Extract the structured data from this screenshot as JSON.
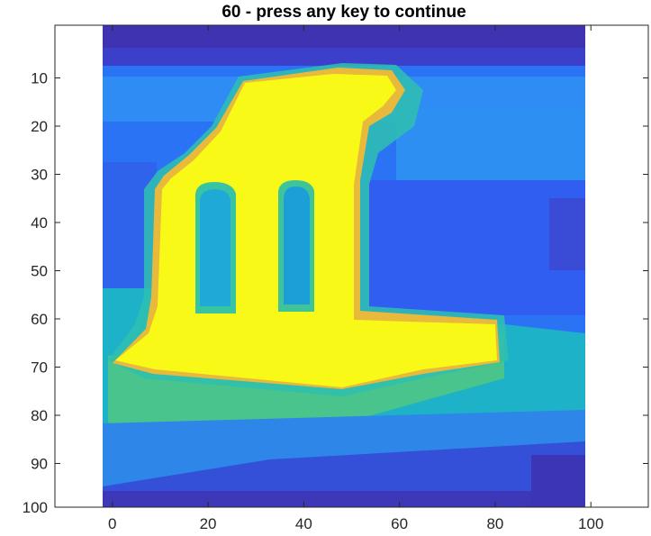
{
  "window": {
    "title": "60 - press any key to continue"
  },
  "chart_data": {
    "type": "heatmap",
    "title": "60 - press any key to continue",
    "xlabel": "",
    "ylabel": "",
    "xlim": [
      -12,
      112
    ],
    "ylim": [
      0,
      100
    ],
    "y_reversed": true,
    "grid": false,
    "xticks": [
      0,
      20,
      40,
      60,
      80,
      100
    ],
    "yticks": [
      10,
      20,
      30,
      40,
      50,
      60,
      70,
      80,
      90,
      100
    ],
    "xtick_labels": [
      "0",
      "20",
      "40",
      "60",
      "80",
      "100"
    ],
    "ytick_labels": [
      "10",
      "20",
      "30",
      "40",
      "50",
      "60",
      "70",
      "80",
      "90",
      "100"
    ],
    "colormap": [
      "#3e26a8",
      "#2f5ef2",
      "#2d8ff5",
      "#16b2d8",
      "#33c39e",
      "#9abb4c",
      "#f1b83a",
      "#f9f917"
    ],
    "image_extent": {
      "x": [
        0.5,
        100.5
      ],
      "y": [
        0.5,
        100.5
      ]
    },
    "image_description_note": "",
    "regions": [
      {
        "name": "",
        "value": 0.0,
        "shape": "rect",
        "x": [
          1,
          100
        ],
        "y": [
          0,
          8
        ]
      },
      {
        "name": "",
        "value": 0.15,
        "shape": "rect",
        "x": [
          1,
          100
        ],
        "y": [
          8,
          12
        ]
      },
      {
        "name": "",
        "value": 0.2,
        "shape": "rect",
        "x": [
          1,
          100
        ],
        "y": [
          12,
          60
        ]
      },
      {
        "name": "",
        "value": 0.28,
        "shape": "rect",
        "x": [
          1,
          100
        ],
        "y": [
          12,
          22
        ]
      },
      {
        "name": "",
        "value": 0.05,
        "shape": "rect",
        "x": [
          1,
          100
        ],
        "y": [
          95,
          101
        ]
      },
      {
        "name": "",
        "value": 0.35,
        "shape": "rect",
        "x": [
          1,
          100
        ],
        "y": [
          56,
          101
        ]
      },
      {
        "name": "",
        "value": 0.5,
        "shape": "rect",
        "x": [
          1,
          100
        ],
        "y": [
          72,
          92
        ]
      }
    ]
  }
}
